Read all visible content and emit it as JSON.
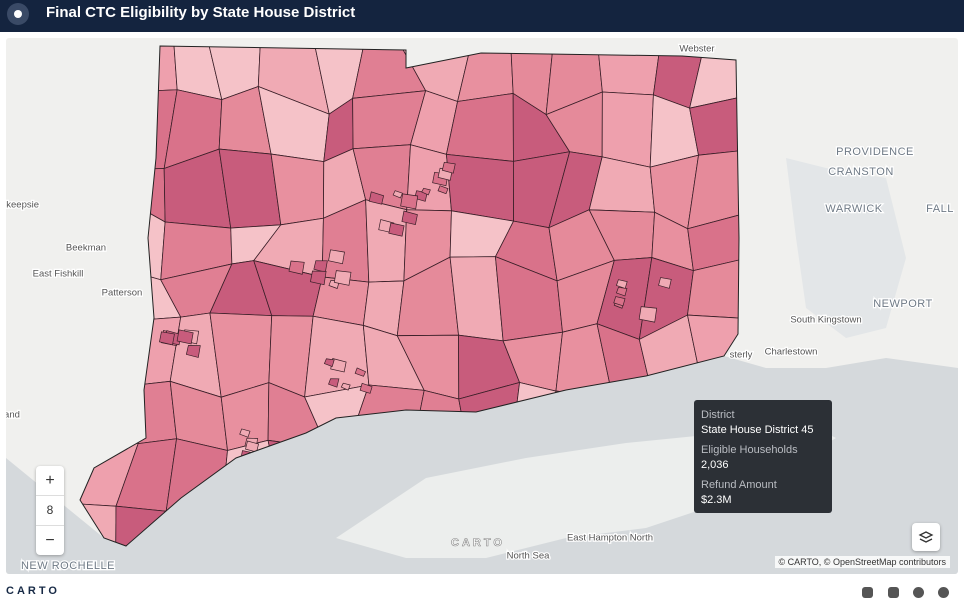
{
  "header": {
    "title": "Final CTC Eligibility by State House District"
  },
  "map": {
    "labels": [
      "Webster",
      "PROVIDENCE",
      "CRANSTON",
      "WARWICK",
      "FALL",
      "nkeepsie",
      "Beekman",
      "East Fishkill",
      "Patterson",
      "NEWPORT",
      "South Kingstown",
      "Charlestown",
      "sterly",
      "rtland",
      "NEW ROCHELLE",
      "East Hampton North",
      "North Sea"
    ],
    "watermark": "CARTO",
    "attribution": "© CARTO, © OpenStreetMap contributors"
  },
  "zoom": {
    "in": "+",
    "level": "8",
    "out": "−"
  },
  "tooltip": {
    "fields": [
      {
        "label": "District",
        "value": "State House District 45"
      },
      {
        "label": "Eligible Households",
        "value": "2,036"
      },
      {
        "label": "Refund Amount",
        "value": "$2.3M"
      }
    ]
  },
  "footer": {
    "logo": "CARTO"
  }
}
